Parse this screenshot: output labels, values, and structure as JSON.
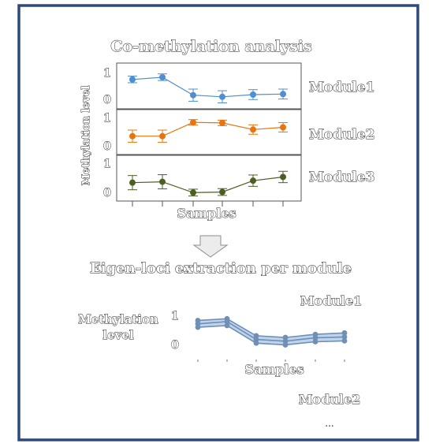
{
  "colors": {
    "frame": "#2e4a7d",
    "module1": "#4f8fd0",
    "module2": "#e8740f",
    "module3": "#4d5e23",
    "eigen_line": "#6f8fb5",
    "eigen_band": "#a9c4e6",
    "arrow_fill": "#ececec",
    "arrow_stroke": "#8c8c8c"
  },
  "top": {
    "title": "Co-methylation  analysis",
    "ylabel": "Methylation level",
    "xlabel": "Samples",
    "y_tick_labels": [
      "1",
      "0"
    ],
    "modules": [
      {
        "label": "Module1",
        "values": [
          0.75,
          0.83,
          0.18,
          0.12,
          0.2,
          0.22
        ],
        "errors": [
          0.12,
          0.12,
          0.22,
          0.22,
          0.18,
          0.18
        ]
      },
      {
        "label": "Module2",
        "values": [
          0.38,
          0.38,
          0.88,
          0.86,
          0.62,
          0.7
        ],
        "errors": [
          0.22,
          0.22,
          0.1,
          0.1,
          0.17,
          0.17
        ]
      },
      {
        "label": "Module3",
        "values": [
          0.37,
          0.4,
          0.02,
          0.04,
          0.44,
          0.57
        ],
        "errors": [
          0.25,
          0.25,
          0.12,
          0.12,
          0.2,
          0.2
        ]
      }
    ]
  },
  "arrow_icon": "down-arrow-icon",
  "bottom": {
    "title": "Eigen-loci extraction per module",
    "ylabel_line1": "Methylation",
    "ylabel_line2": "level",
    "xlabel": "Samples",
    "y_tick_labels": [
      "1",
      "0"
    ],
    "module1_label": "Module1",
    "module2_label": "Module2",
    "ellipsis": "...",
    "eigen_lines": [
      [
        0.82,
        0.88,
        0.28,
        0.22,
        0.33,
        0.38
      ],
      [
        0.7,
        0.78,
        0.15,
        0.09,
        0.21,
        0.24
      ],
      [
        0.58,
        0.64,
        0.02,
        -0.04,
        0.07,
        0.1
      ]
    ]
  }
}
